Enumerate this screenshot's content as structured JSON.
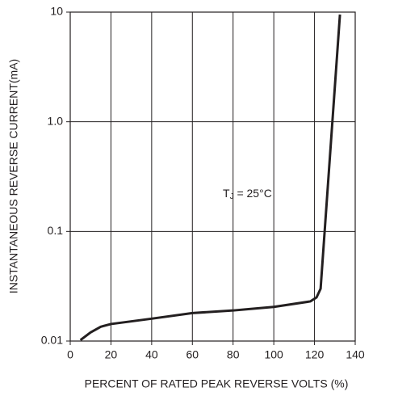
{
  "chart_data": {
    "type": "line",
    "xlabel": "PERCENT OF RATED PEAK REVERSE VOLTS (%)",
    "ylabel": "INSTANTANEOUS REVERSE CURRENT(mA)",
    "annotation": {
      "symbol": "T",
      "subscript": "J",
      "text": " = 25°C"
    },
    "x": [
      5,
      10,
      15,
      20,
      40,
      60,
      80,
      100,
      118,
      121,
      123,
      132.5
    ],
    "series": [
      {
        "color": "#231f20",
        "values": [
          0.0102,
          0.012,
          0.0135,
          0.0143,
          0.016,
          0.018,
          0.019,
          0.0205,
          0.023,
          0.025,
          0.03,
          9.5
        ]
      }
    ],
    "xlim": [
      0,
      140
    ],
    "xticks": [
      0,
      20,
      40,
      60,
      80,
      100,
      120,
      140
    ],
    "ylim": [
      0.01,
      10
    ],
    "yticks": [
      0.01,
      0.1,
      {
        "value": 1,
        "label": "1.0"
      },
      10
    ],
    "ylog": true,
    "grid": true
  }
}
